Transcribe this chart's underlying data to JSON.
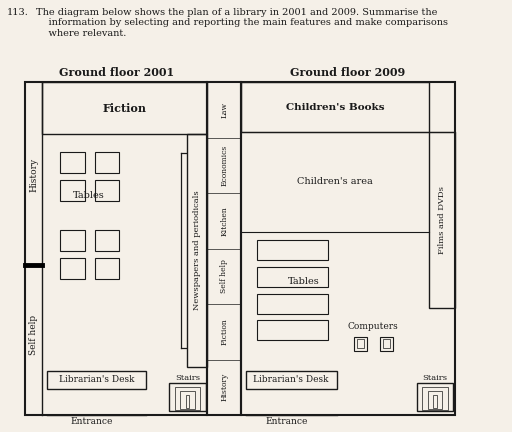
{
  "floor2001_title": "Ground floor 2001",
  "floor2009_title": "Ground floor 2009",
  "bg_color": "#f5f0e8",
  "font_color": "#1a1a1a",
  "col_labels": [
    "Law",
    "Economics",
    "Kitchen",
    "Self help",
    "Fiction",
    "History"
  ]
}
